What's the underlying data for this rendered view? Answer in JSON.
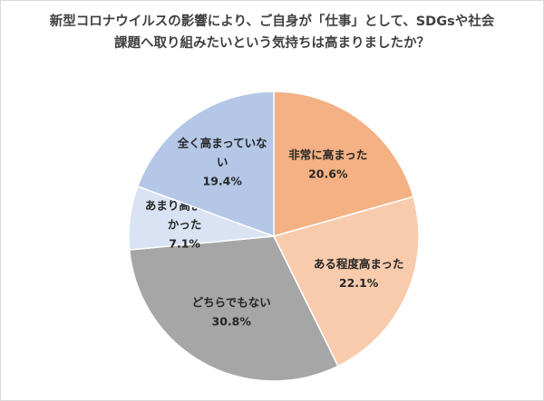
{
  "chart_data": {
    "type": "pie",
    "title_lines": [
      "新型コロナウイルスの影響により、ご自身が「仕事」として、SDGsや社会",
      "課題へ取り組みたいという気持ちは高まりましたか？"
    ],
    "start_angle_deg": 0,
    "direction": "clockwise",
    "slices": [
      {
        "label_lines": [
          "非常に高まった"
        ],
        "value": 20.6,
        "value_label": "20.6%",
        "color": "#f4b183"
      },
      {
        "label_lines": [
          "ある程度高まった"
        ],
        "value": 22.1,
        "value_label": "22.1%",
        "color": "#f8cbad"
      },
      {
        "label_lines": [
          "どちらでもない"
        ],
        "value": 30.8,
        "value_label": "30.8%",
        "color": "#a6a6a6"
      },
      {
        "label_lines": [
          "あまり高まらな",
          "かった"
        ],
        "value": 7.1,
        "value_label": "7.1%",
        "color": "#dae3f3"
      },
      {
        "label_lines": [
          "全く高まっていな",
          "い"
        ],
        "value": 19.4,
        "value_label": "19.4%",
        "color": "#b4c7e7"
      }
    ]
  }
}
